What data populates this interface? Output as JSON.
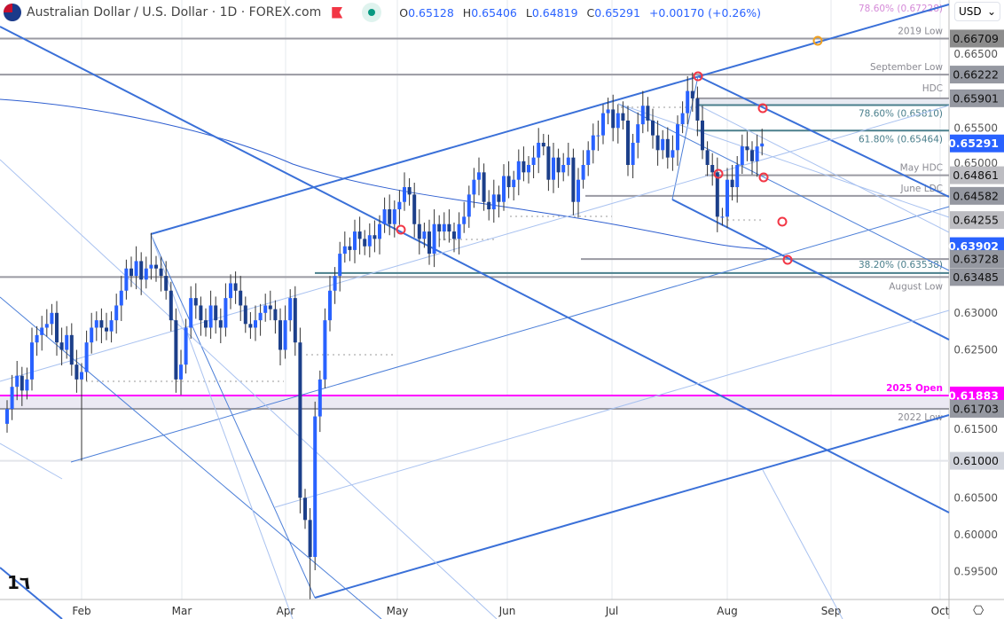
{
  "header": {
    "title": "Australian Dollar / U.S. Dollar · 1D · FOREX.com",
    "open_label": "O",
    "open": "0.65128",
    "high_label": "H",
    "high": "0.65406",
    "low_label": "L",
    "low": "0.64819",
    "close_label": "C",
    "close": "0.65291",
    "change": "+0.00170 (+0.26%)"
  },
  "currency_selector": "USD",
  "logo_text": "TV",
  "icons": {
    "flag": "aud-usd-flag-icon",
    "alert": "red-flag-icon",
    "market_status": "green-dot-icon",
    "settings": "gear-icon"
  },
  "colors": {
    "up": "#2962ff",
    "down": "#1c3f8a",
    "accent": "#2962ff",
    "open_2025": "#ff00ff",
    "fib": "#4a7f8c",
    "trendline": "#3a70d8",
    "marker": "#f23645"
  },
  "chart_data": {
    "type": "candlestick",
    "title": "Australian Dollar / U.S. Dollar · 1D · FOREX.com",
    "x_ticks": [
      "Feb",
      "Mar",
      "Apr",
      "May",
      "Jun",
      "Jul",
      "Aug",
      "Sep",
      "Oct"
    ],
    "y_ticks": [
      "0.66500",
      "0.65500",
      "0.65000",
      "0.63000",
      "0.62500",
      "0.61500",
      "0.60500",
      "0.60000",
      "0.59500"
    ],
    "ylim": [
      0.5915,
      0.6782
    ],
    "first_date": "2025-01-13",
    "last_date": "2025-08-13",
    "closes": [
      0.617,
      0.62,
      0.6215,
      0.6195,
      0.621,
      0.626,
      0.627,
      0.628,
      0.6285,
      0.63,
      0.626,
      0.625,
      0.627,
      0.623,
      0.621,
      0.622,
      0.626,
      0.628,
      0.629,
      0.628,
      0.6275,
      0.629,
      0.631,
      0.633,
      0.636,
      0.635,
      0.637,
      0.6345,
      0.636,
      0.6365,
      0.636,
      0.635,
      0.633,
      0.629,
      0.621,
      0.623,
      0.628,
      0.632,
      0.631,
      0.629,
      0.628,
      0.631,
      0.629,
      0.628,
      0.632,
      0.634,
      0.633,
      0.631,
      0.6285,
      0.628,
      0.629,
      0.63,
      0.631,
      0.6305,
      0.629,
      0.625,
      0.629,
      0.632,
      0.626,
      0.605,
      0.602,
      0.597,
      0.616,
      0.621,
      0.629,
      0.633,
      0.635,
      0.638,
      0.639,
      0.6385,
      0.641,
      0.64,
      0.639,
      0.6405,
      0.64,
      0.642,
      0.644,
      0.642,
      0.644,
      0.645,
      0.647,
      0.646,
      0.642,
      0.64,
      0.641,
      0.638,
      0.642,
      0.641,
      0.642,
      0.641,
      0.64,
      0.642,
      0.643,
      0.646,
      0.648,
      0.649,
      0.645,
      0.644,
      0.646,
      0.645,
      0.6485,
      0.647,
      0.648,
      0.6505,
      0.649,
      0.65,
      0.651,
      0.653,
      0.6525,
      0.648,
      0.651,
      0.649,
      0.65,
      0.651,
      0.645,
      0.648,
      0.65,
      0.652,
      0.654,
      0.654,
      0.657,
      0.6575,
      0.655,
      0.657,
      0.656,
      0.65,
      0.653,
      0.6555,
      0.658,
      0.656,
      0.654,
      0.652,
      0.6535,
      0.651,
      0.652,
      0.6555,
      0.657,
      0.66,
      0.659,
      0.656,
      0.652,
      0.65,
      0.649,
      0.643,
      0.643,
      0.648,
      0.647,
      0.65,
      0.6525,
      0.652,
      0.6505,
      0.6525,
      0.6529
    ],
    "extreme_wicks": [
      {
        "index": 15,
        "low": 0.61
      },
      {
        "index": 61,
        "low": 0.5913
      },
      {
        "index": 29,
        "high": 0.6408
      },
      {
        "index": 138,
        "high": 0.6625
      }
    ],
    "moving_average": {
      "last_value": "0.63902"
    },
    "levels": [
      {
        "label": "78.60% (0.67228)",
        "price": 0.67228,
        "badge": "",
        "style": "fib-pink"
      },
      {
        "label": "2019 Low",
        "price": 0.66709,
        "badge": "0.66709",
        "style": "gray"
      },
      {
        "label": "September Low",
        "price": 0.66222,
        "badge": "0.66222",
        "style": "gray"
      },
      {
        "label": "HDC",
        "price": 0.65901,
        "badge": "0.65901",
        "style": "gray-partial"
      },
      {
        "label": "78.60% (0.65810)",
        "price": 0.6581,
        "badge": "",
        "style": "fib"
      },
      {
        "label": "61.80% (0.65464)",
        "price": 0.65464,
        "badge": "",
        "style": "fib"
      },
      {
        "label": "",
        "price": 0.65291,
        "badge": "0.65291",
        "style": "last"
      },
      {
        "label": "May HDC",
        "price": 0.64861,
        "badge": "0.64861",
        "style": "gray-partial"
      },
      {
        "label": "June LDC",
        "price": 0.64582,
        "badge": "0.64582",
        "style": "gray-partial"
      },
      {
        "label": "",
        "price": 0.64255,
        "badge": "0.64255",
        "style": "dotted"
      },
      {
        "label": "",
        "price": 0.63902,
        "badge": "0.63902",
        "style": "ma"
      },
      {
        "label": "",
        "price": 0.63728,
        "badge": "0.63728",
        "style": "gray-partial2"
      },
      {
        "label": "38.20% (0.63538)",
        "price": 0.63538,
        "badge": "",
        "style": "fib-long"
      },
      {
        "label": "August Low",
        "price": 0.63485,
        "badge": "0.63485",
        "style": "gray"
      },
      {
        "label": "2025 Open",
        "price": 0.61883,
        "badge": "0.61883",
        "style": "magenta"
      },
      {
        "label": "2022 Low",
        "price": 0.61703,
        "badge": "0.61703",
        "style": "gray"
      },
      {
        "label": "",
        "price": 0.61,
        "badge": "0.61000",
        "style": "light"
      }
    ]
  }
}
